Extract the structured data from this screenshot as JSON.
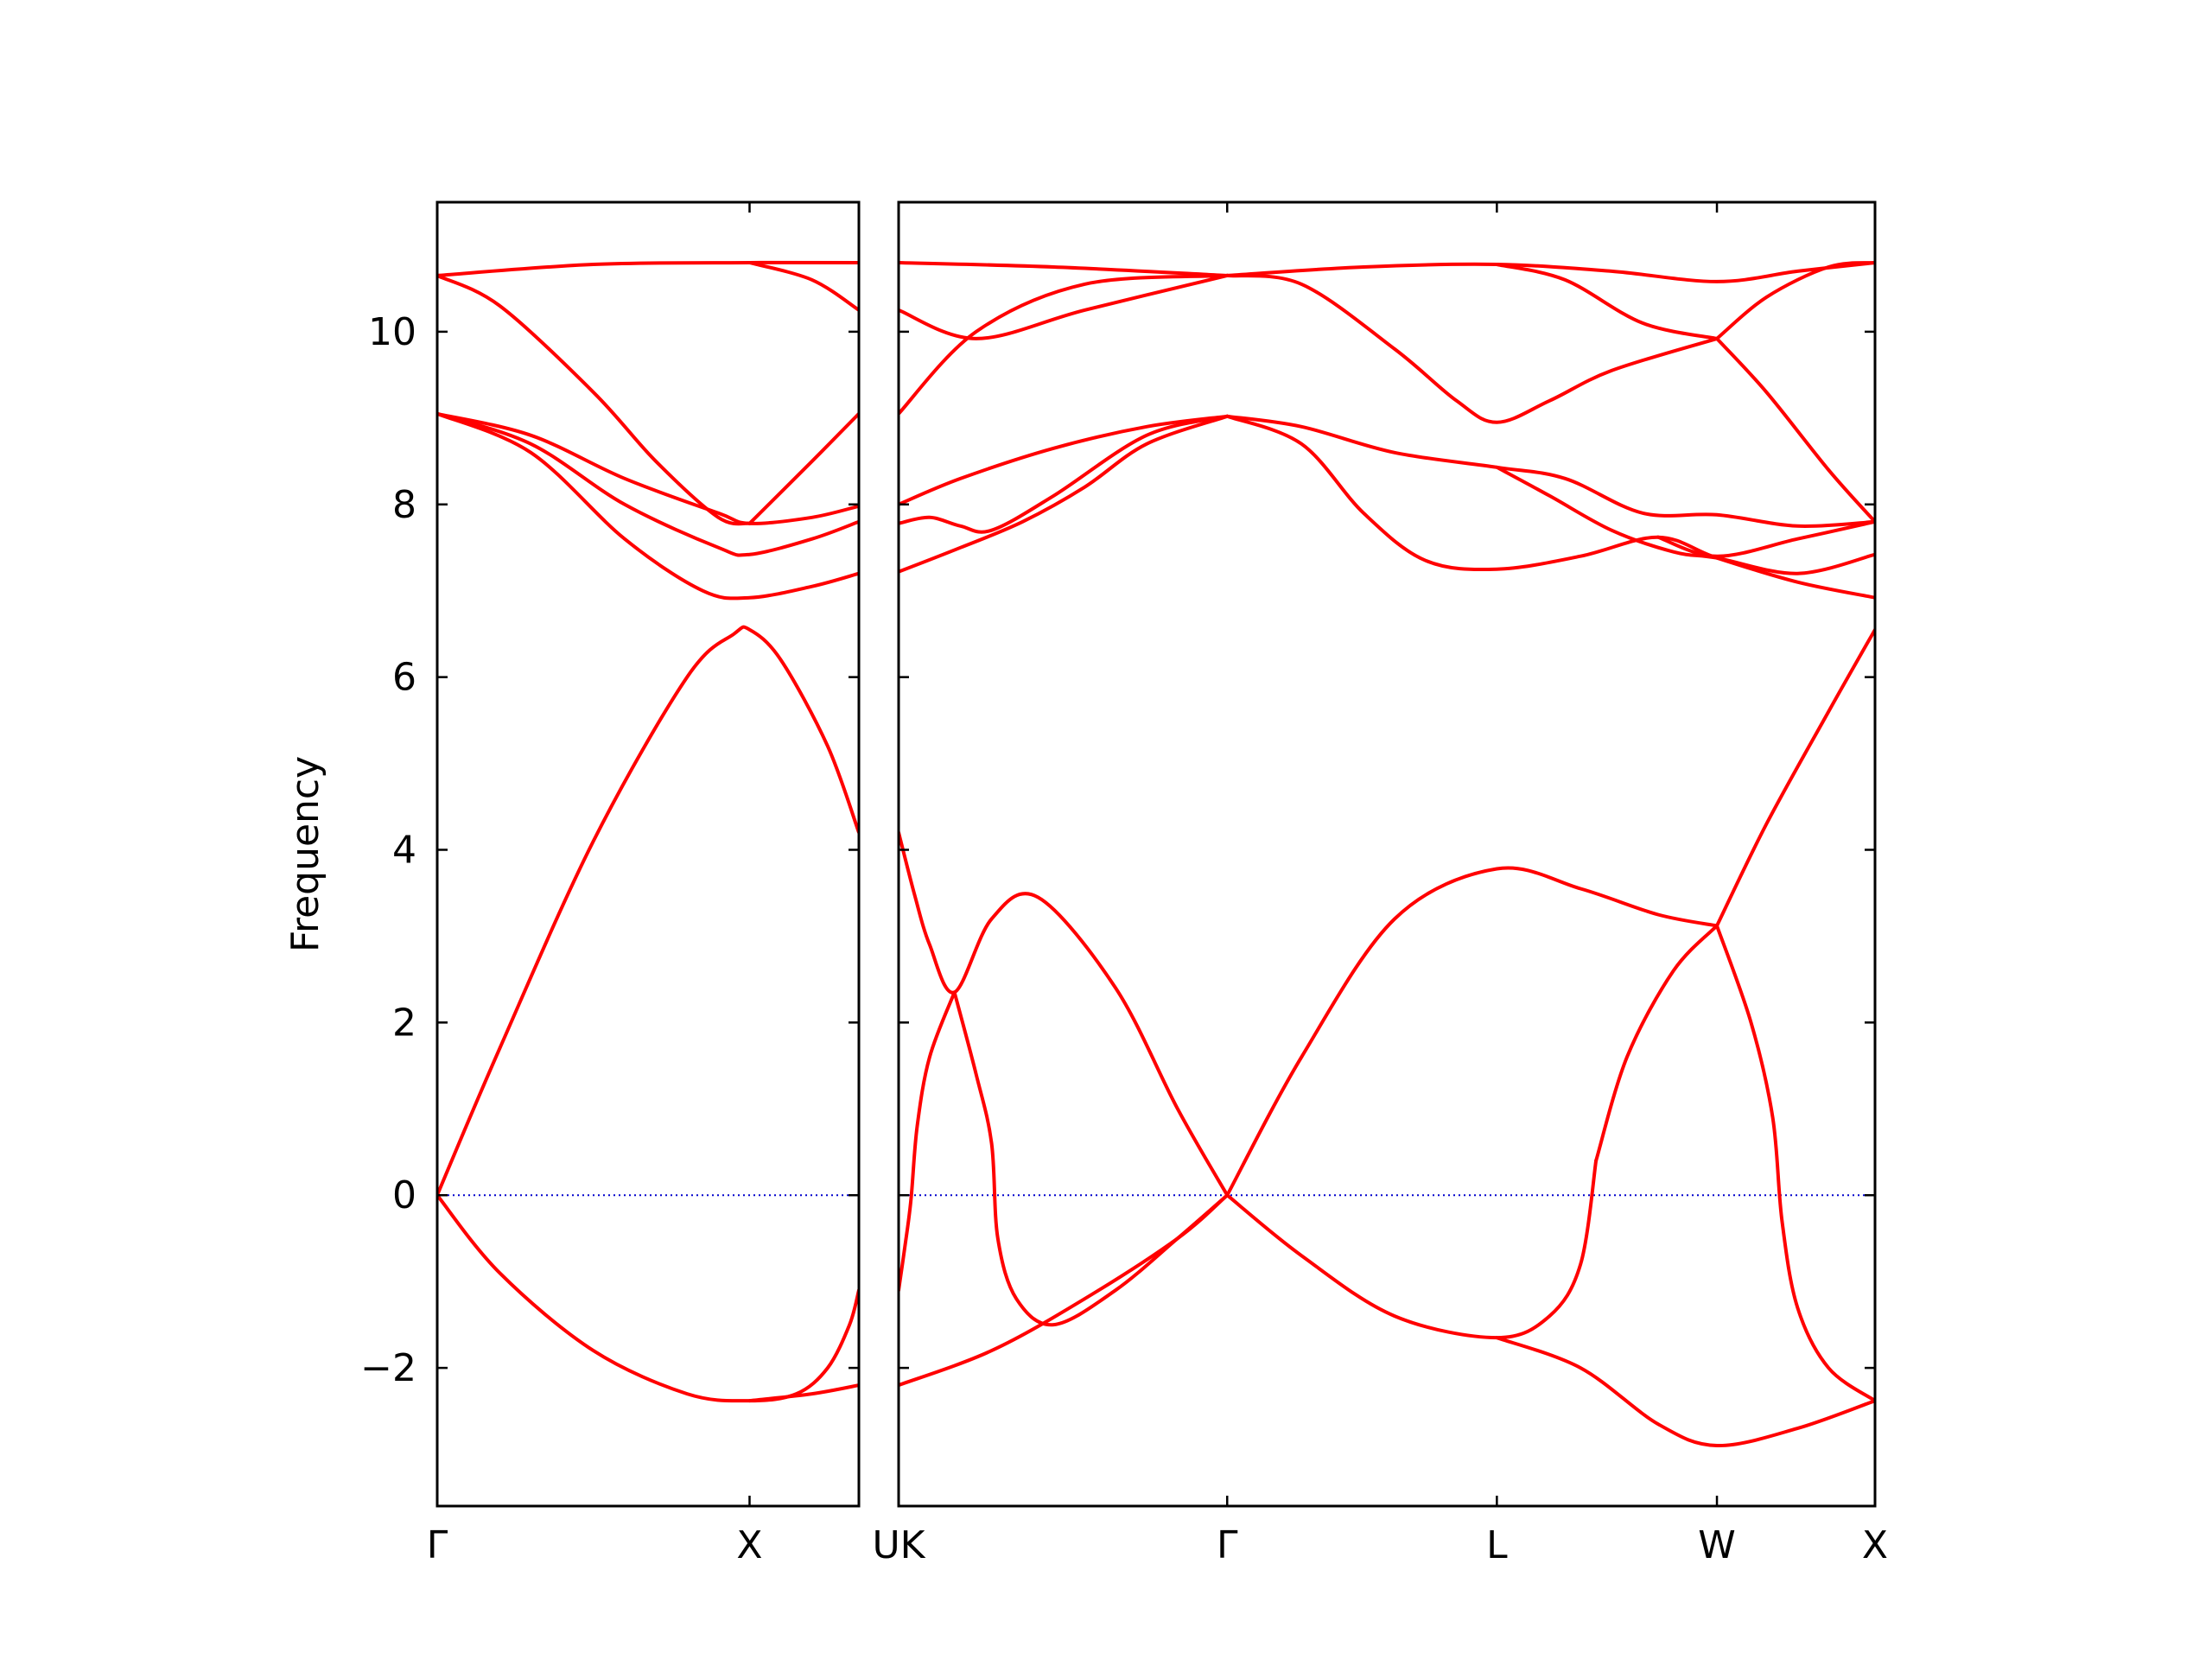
{
  "chart_data": {
    "type": "line",
    "title": "",
    "ylabel": "Frequency",
    "ylim": [
      -3.6,
      11.5
    ],
    "yticks": [
      -2,
      0,
      2,
      4,
      6,
      8,
      10
    ],
    "ytick_labels": [
      "−2",
      "0",
      "2",
      "4",
      "6",
      "8",
      "10"
    ],
    "zero_line_color": "#0000cc",
    "band_color": "#ff0000",
    "grid": false,
    "panels": [
      {
        "path": [
          "Γ",
          "X",
          "U"
        ],
        "xlim": [
          0,
          1.35
        ],
        "tick_positions": [
          0,
          1.0,
          1.35
        ],
        "tick_labels": [
          "Γ",
          "X",
          ""
        ],
        "bands": [
          {
            "x": [
              0,
              0.5,
              1.0,
              1.35
            ],
            "y": [
              10.65,
              10.78,
              10.8,
              10.8
            ]
          },
          {
            "x": [
              0,
              0.2,
              0.5,
              0.7,
              0.9,
              1.0
            ],
            "y": [
              10.65,
              10.3,
              9.3,
              8.5,
              7.85,
              7.78
            ]
          },
          {
            "x": [
              1.0,
              1.2,
              1.35
            ],
            "y": [
              10.8,
              10.6,
              10.25
            ]
          },
          {
            "x": [
              1.0,
              1.2,
              1.35
            ],
            "y": [
              7.78,
              8.5,
              9.05
            ]
          },
          {
            "x": [
              0,
              0.3,
              0.6,
              0.9,
              1.0,
              1.2,
              1.35
            ],
            "y": [
              9.05,
              8.8,
              8.3,
              7.9,
              7.78,
              7.85,
              7.98
            ]
          },
          {
            "x": [
              0,
              0.3,
              0.6,
              0.9,
              1.0,
              1.2,
              1.35
            ],
            "y": [
              9.05,
              8.7,
              8.0,
              7.5,
              7.42,
              7.6,
              7.8
            ]
          },
          {
            "x": [
              0,
              0.3,
              0.6,
              0.85,
              1.0,
              1.2,
              1.35
            ],
            "y": [
              9.05,
              8.6,
              7.6,
              7.0,
              6.92,
              7.05,
              7.2
            ]
          },
          {
            "x": [
              0,
              0.2,
              0.5,
              0.8,
              0.95,
              1.0,
              1.1,
              1.25,
              1.35
            ],
            "y": [
              0,
              1.7,
              4.1,
              6.0,
              6.5,
              6.55,
              6.2,
              5.2,
              4.2
            ]
          },
          {
            "x": [
              0,
              0.2,
              0.5,
              0.8,
              1.0,
              1.15,
              1.25,
              1.32,
              1.35
            ],
            "y": [
              0,
              -0.9,
              -1.8,
              -2.3,
              -2.38,
              -2.3,
              -2.0,
              -1.5,
              -1.1
            ]
          },
          {
            "x": [
              1.0,
              1.2,
              1.35
            ],
            "y": [
              -2.38,
              -2.3,
              -2.2
            ]
          }
        ]
      },
      {
        "path": [
          "K",
          "Γ",
          "L",
          "W",
          "X"
        ],
        "xlim": [
          0,
          3.15
        ],
        "tick_positions": [
          0,
          1.06,
          1.93,
          2.64,
          3.15
        ],
        "tick_labels": [
          "UK",
          "Γ",
          "L",
          "W",
          "X"
        ],
        "bands": [
          {
            "x": [
              0,
              0.5,
              1.06
            ],
            "y": [
              10.8,
              10.75,
              10.65
            ]
          },
          {
            "x": [
              0,
              0.25,
              0.6,
              1.06
            ],
            "y": [
              10.25,
              9.92,
              10.25,
              10.65
            ]
          },
          {
            "x": [
              0,
              0.25,
              0.6,
              1.06
            ],
            "y": [
              9.05,
              10.0,
              10.55,
              10.65
            ]
          },
          {
            "x": [
              1.06,
              1.5,
              1.93,
              2.3,
              2.64,
              2.9,
              3.15
            ],
            "y": [
              10.65,
              10.75,
              10.78,
              10.7,
              10.58,
              10.7,
              10.8
            ]
          },
          {
            "x": [
              1.06,
              1.3,
              1.6,
              1.8,
              1.93,
              2.1,
              2.3,
              2.64
            ],
            "y": [
              10.65,
              10.55,
              9.8,
              9.2,
              8.95,
              9.2,
              9.55,
              9.92
            ]
          },
          {
            "x": [
              1.93,
              2.15,
              2.4,
              2.64
            ],
            "y": [
              10.78,
              10.6,
              10.1,
              9.92
            ]
          },
          {
            "x": [
              2.64,
              2.8,
              3.0,
              3.15
            ],
            "y": [
              9.92,
              10.4,
              10.75,
              10.8
            ]
          },
          {
            "x": [
              2.64,
              2.8,
              3.0,
              3.15
            ],
            "y": [
              9.92,
              9.3,
              8.4,
              7.8
            ]
          },
          {
            "x": [
              0,
              0.2,
              0.5,
              0.8,
              1.06
            ],
            "y": [
              8.0,
              8.3,
              8.65,
              8.9,
              9.02
            ]
          },
          {
            "x": [
              0,
              0.1,
              0.2,
              0.3,
              0.5,
              0.8,
              1.06
            ],
            "y": [
              7.78,
              7.85,
              7.75,
              7.7,
              8.1,
              8.8,
              9.02
            ]
          },
          {
            "x": [
              0,
              0.2,
              0.4,
              0.6,
              0.8,
              1.06
            ],
            "y": [
              7.22,
              7.5,
              7.8,
              8.2,
              8.7,
              9.02
            ]
          },
          {
            "x": [
              1.06,
              1.3,
              1.6,
              1.93,
              2.15,
              2.4,
              2.64,
              2.9,
              3.15
            ],
            "y": [
              9.02,
              8.9,
              8.6,
              8.43,
              8.3,
              7.9,
              7.88,
              7.75,
              7.8
            ]
          },
          {
            "x": [
              1.93,
              2.1,
              2.3,
              2.5,
              2.64,
              2.9,
              3.15
            ],
            "y": [
              8.43,
              8.1,
              7.7,
              7.45,
              7.38,
              7.2,
              7.42
            ]
          },
          {
            "x": [
              1.06,
              1.3,
              1.5,
              1.7,
              1.93,
              2.2,
              2.45,
              2.64,
              2.9,
              3.15
            ],
            "y": [
              9.02,
              8.7,
              7.9,
              7.35,
              7.25,
              7.4,
              7.62,
              7.38,
              7.1,
              6.92
            ]
          },
          {
            "x": [
              2.45,
              2.64,
              2.9,
              3.15
            ],
            "y": [
              7.62,
              7.4,
              7.6,
              7.8
            ]
          },
          {
            "x": [
              0,
              0.05,
              0.1,
              0.18,
              0.3,
              0.45,
              0.7,
              0.9,
              1.06
            ],
            "y": [
              4.2,
              3.5,
              2.9,
              2.35,
              3.2,
              3.45,
              2.4,
              1.0,
              0
            ]
          },
          {
            "x": [
              1.06,
              1.3,
              1.6,
              1.93,
              2.2,
              2.45,
              2.64
            ],
            "y": [
              0,
              1.6,
              3.2,
              3.78,
              3.55,
              3.25,
              3.12
            ]
          },
          {
            "x": [
              2.64,
              2.8,
              3.0,
              3.15
            ],
            "y": [
              3.12,
              4.3,
              5.6,
              6.55
            ]
          },
          {
            "x": [
              0,
              0.02,
              0.04,
              0.06,
              0.1,
              0.18
            ],
            "y": [
              -1.1,
              -0.6,
              -0.05,
              0.8,
              1.6,
              2.35
            ]
          },
          {
            "x": [
              0.18,
              0.25,
              0.3,
              0.32,
              0.38,
              0.5,
              0.7,
              0.9,
              1.06
            ],
            "y": [
              2.35,
              1.4,
              0.6,
              -0.5,
              -1.2,
              -1.5,
              -1.1,
              -0.5,
              0
            ]
          },
          {
            "x": [
              0,
              0.3,
              0.6,
              0.9,
              1.06
            ],
            "y": [
              -2.2,
              -1.8,
              -1.2,
              -0.5,
              0
            ]
          },
          {
            "x": [
              1.06,
              1.3,
              1.6,
              1.93,
              2.1,
              2.2,
              2.25
            ],
            "y": [
              0,
              -0.7,
              -1.4,
              -1.65,
              -1.4,
              -0.8,
              0.4
            ]
          },
          {
            "x": [
              2.25,
              2.35,
              2.5,
              2.64
            ],
            "y": [
              0.4,
              1.6,
              2.6,
              3.12
            ]
          },
          {
            "x": [
              2.64,
              2.75,
              2.82,
              2.85,
              2.9,
              3.0,
              3.15
            ],
            "y": [
              3.12,
              2.0,
              0.9,
              -0.3,
              -1.3,
              -2.0,
              -2.38
            ]
          },
          {
            "x": [
              1.93,
              2.2,
              2.45,
              2.64,
              2.9,
              3.15
            ],
            "y": [
              -1.65,
              -2.0,
              -2.65,
              -2.9,
              -2.7,
              -2.38
            ]
          }
        ]
      }
    ]
  }
}
